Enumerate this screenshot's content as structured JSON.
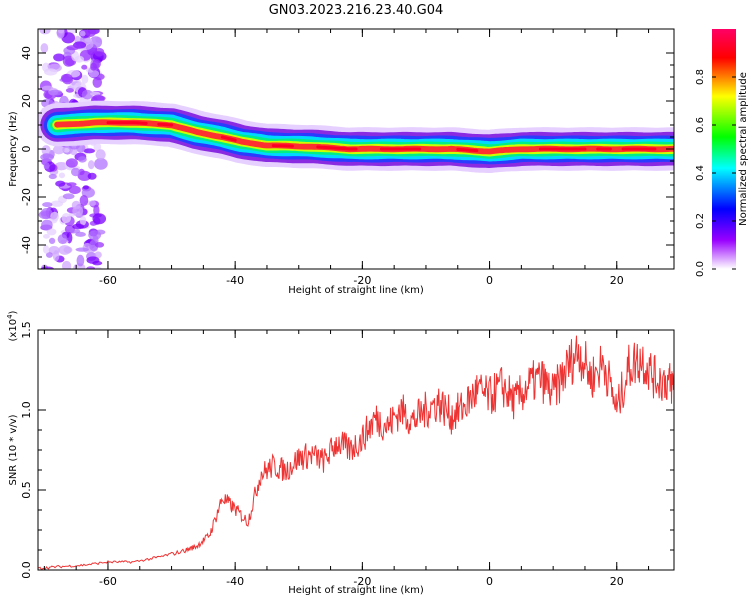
{
  "title": "GN03.2023.216.23.40.G04",
  "chart_data": [
    {
      "type": "heatmap",
      "xlabel": "Height of straight line (km)",
      "ylabel": "Frequency (Hz)",
      "xlim": [
        -71,
        29
      ],
      "ylim": [
        -50,
        50
      ],
      "xticks": [
        -60,
        -40,
        -20,
        0,
        20
      ],
      "yticks": [
        -40,
        -20,
        0,
        20,
        40
      ],
      "colorbar": {
        "label": "Normalized spectral amplitude",
        "range": [
          0,
          1
        ],
        "ticks": [
          0.0,
          0.2,
          0.4,
          0.6,
          0.8
        ],
        "colors": [
          "#ffffff",
          "#9900ff",
          "#0000ff",
          "#00ffff",
          "#00ff00",
          "#ffff00",
          "#ff0000",
          "#ff0066"
        ]
      },
      "ridge": [
        {
          "x": -68,
          "y": 10
        },
        {
          "x": -62,
          "y": 11
        },
        {
          "x": -56,
          "y": 11
        },
        {
          "x": -50,
          "y": 10
        },
        {
          "x": -46,
          "y": 7
        },
        {
          "x": -42,
          "y": 5
        },
        {
          "x": -39,
          "y": 3
        },
        {
          "x": -35,
          "y": 1.5
        },
        {
          "x": -28,
          "y": 1
        },
        {
          "x": -22,
          "y": 0
        },
        {
          "x": -14,
          "y": 0
        },
        {
          "x": -6,
          "y": 0
        },
        {
          "x": 0,
          "y": -1
        },
        {
          "x": 5,
          "y": 0
        },
        {
          "x": 12,
          "y": 0
        },
        {
          "x": 20,
          "y": 0
        },
        {
          "x": 29,
          "y": 0
        }
      ]
    },
    {
      "type": "line",
      "xlabel": "Height of straight line (km)",
      "ylabel": "SNR (10 * v/v)",
      "yscale_label": "(x10",
      "yscale_exp": "4",
      "xlim": [
        -71,
        29
      ],
      "ylim": [
        0,
        1.5
      ],
      "xticks": [
        -60,
        -40,
        -20,
        0,
        20
      ],
      "yticks": [
        0.0,
        0.5,
        1.0,
        1.5
      ],
      "series": [
        {
          "color": "#ee3333",
          "x": [
            -71,
            -68,
            -64,
            -60,
            -56,
            -52,
            -48,
            -46,
            -44,
            -42,
            -40,
            -38,
            -36,
            -34,
            -32,
            -30,
            -28,
            -26,
            -24,
            -22,
            -20,
            -18,
            -16,
            -14,
            -12,
            -10,
            -8,
            -6,
            -4,
            -2,
            0,
            2,
            4,
            6,
            8,
            10,
            12,
            14,
            16,
            18,
            20,
            22,
            24,
            26,
            28,
            29
          ],
          "y": [
            0.01,
            0.02,
            0.03,
            0.05,
            0.05,
            0.08,
            0.12,
            0.15,
            0.22,
            0.45,
            0.38,
            0.3,
            0.6,
            0.65,
            0.62,
            0.7,
            0.72,
            0.68,
            0.8,
            0.75,
            0.82,
            0.95,
            0.9,
            1.0,
            0.93,
            1.0,
            1.05,
            0.96,
            1.02,
            1.12,
            1.08,
            1.15,
            1.05,
            1.15,
            1.2,
            1.1,
            1.25,
            1.38,
            1.2,
            1.3,
            1.0,
            1.28,
            1.32,
            1.2,
            1.18,
            1.15
          ]
        }
      ]
    }
  ]
}
